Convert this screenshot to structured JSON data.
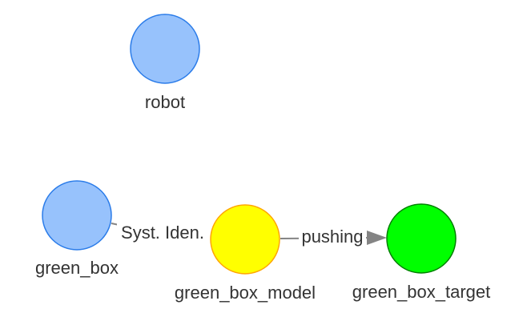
{
  "nodes": {
    "robot": {
      "label": "robot",
      "fill": "#97c2fc",
      "stroke": "#2b7ce9"
    },
    "green_box": {
      "label": "green_box",
      "fill": "#97c2fc",
      "stroke": "#2b7ce9"
    },
    "green_box_model": {
      "label": "green_box_model",
      "fill": "#ffff00",
      "stroke": "#ffa500"
    },
    "green_box_target": {
      "label": "green_box_target",
      "fill": "#00ff00",
      "stroke": "#008000"
    }
  },
  "edges": {
    "sysid": {
      "label": "Syst. Iden.",
      "from": "green_box",
      "to": "green_box_model"
    },
    "pushing": {
      "label": "pushing",
      "from": "green_box_model",
      "to": "green_box_target"
    }
  },
  "colors": {
    "edge": "#848484",
    "label_text": "#333333"
  }
}
